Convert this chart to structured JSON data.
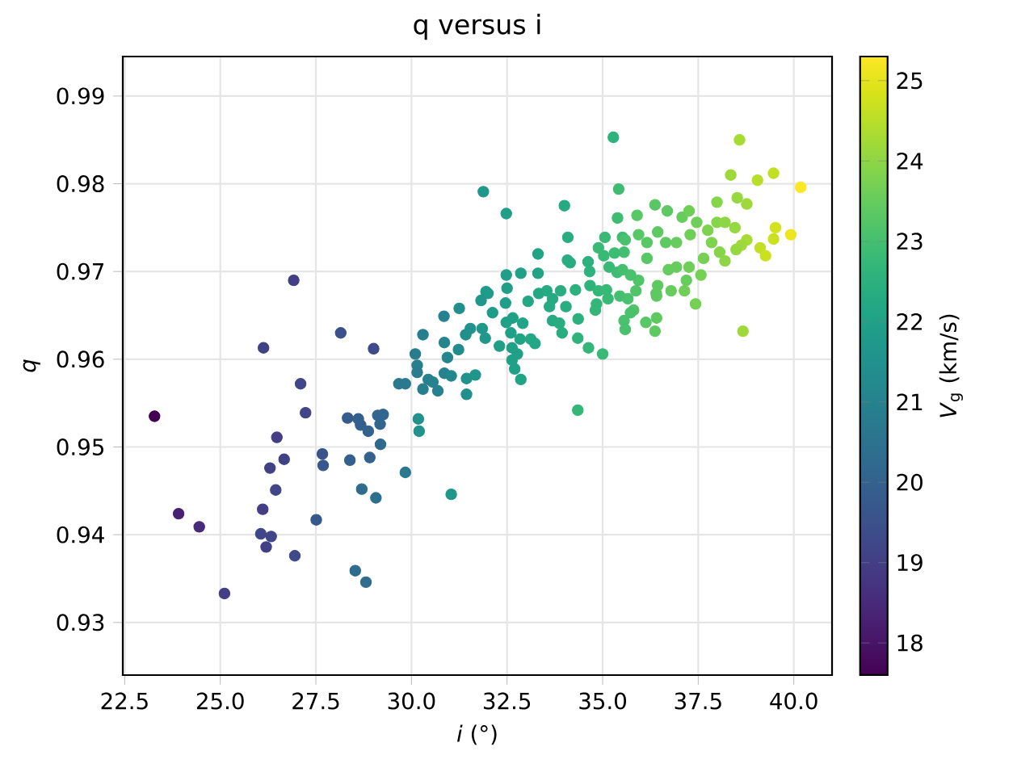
{
  "chart_data": {
    "type": "scatter",
    "title": "q versus i",
    "xlabel": "*i* (°)",
    "ylabel": "q",
    "clabel": "*V*$_{g}$ (km/s)",
    "x": [
      23.28,
      23.91,
      24.45,
      25.11,
      26.92,
      26.13,
      28.15,
      29.01,
      27.1,
      27.23,
      26.48,
      26.67,
      26.3,
      26.45,
      26.11,
      26.06,
      26.33,
      26.2,
      26.95,
      27.51,
      27.67,
      27.69,
      28.33,
      28.61,
      28.67,
      28.87,
      29.12,
      29.26,
      29.18,
      29.19,
      28.39,
      28.91,
      28.7,
      29.07,
      29.84,
      28.53,
      28.81,
      30.18,
      30.2,
      31.04,
      29.67,
      29.84,
      30.1,
      30.15,
      30.15,
      30.3,
      30.3,
      30.44,
      30.56,
      30.69,
      30.85,
      30.86,
      30.94,
      30.86,
      31.04,
      31.25,
      31.23,
      31.42,
      31.54,
      31.44,
      31.44,
      31.67,
      31.88,
      32.48,
      34.0,
      35.42,
      33.31,
      34.09,
      32.48,
      32.86,
      33.31,
      34.08,
      34.15,
      34.62,
      34.66,
      31.95,
      32.0,
      32.5,
      31.82,
      32.12,
      32.46,
      31.85,
      31.93,
      32.3,
      32.48,
      32.65,
      32.91,
      32.6,
      32.84,
      33.12,
      33.23,
      32.63,
      32.63,
      32.7,
      32.86,
      32.77,
      33.05,
      33.33,
      33.54,
      33.69,
      33.9,
      33.61,
      34.04,
      33.69,
      33.87,
      33.94,
      34.36,
      34.35,
      34.63,
      35.0,
      34.35,
      34.29,
      34.67,
      34.89,
      35.1,
      34.84,
      35.14,
      35.06,
      35.03,
      35.17,
      35.38,
      35.52,
      35.39,
      35.56,
      35.45,
      35.66,
      35.56,
      35.59,
      35.81,
      35.9,
      36.4,
      36.37,
      36.41,
      35.94,
      35.73,
      36.16,
      35.28,
      38.58,
      38.35,
      39.05,
      39.47,
      40.18,
      37.99,
      38.52,
      38.77,
      36.37,
      36.69,
      37.08,
      37.26,
      37.46,
      37.75,
      37.99,
      38.2,
      38.46,
      39.52,
      39.47,
      39.92,
      38.77,
      38.63,
      38.49,
      39.12,
      39.26,
      38.06,
      38.2,
      37.85,
      37.64,
      37.57,
      37.26,
      37.19,
      36.93,
      36.72,
      36.65,
      36.93,
      37.29,
      36.16,
      36.44,
      35.94,
      35.59,
      36.44,
      36.79,
      37.14,
      36.41,
      37.43,
      38.67,
      36.13,
      34.81,
      34.89,
      35.31,
      35.52,
      35.87,
      35.73
    ],
    "values": [
      0.9535,
      0.9424,
      0.9409,
      0.9333,
      0.969,
      0.9613,
      0.963,
      0.9612,
      0.9572,
      0.9539,
      0.9511,
      0.9486,
      0.9476,
      0.9451,
      0.9429,
      0.9401,
      0.9398,
      0.9386,
      0.9376,
      0.9417,
      0.9492,
      0.9479,
      0.9533,
      0.9532,
      0.9525,
      0.9518,
      0.9536,
      0.9537,
      0.9526,
      0.9503,
      0.9485,
      0.9488,
      0.9452,
      0.9442,
      0.9471,
      0.9359,
      0.9346,
      0.9532,
      0.9518,
      0.9446,
      0.9572,
      0.9572,
      0.9606,
      0.9593,
      0.9585,
      0.9628,
      0.9566,
      0.9577,
      0.9574,
      0.9564,
      0.9649,
      0.9619,
      0.9602,
      0.9584,
      0.9581,
      0.9658,
      0.9611,
      0.9628,
      0.9635,
      0.9578,
      0.956,
      0.9582,
      0.9791,
      0.9766,
      0.9775,
      0.9794,
      0.972,
      0.9739,
      0.9696,
      0.9698,
      0.9698,
      0.9713,
      0.971,
      0.9711,
      0.97,
      0.9677,
      0.9675,
      0.9681,
      0.9667,
      0.9653,
      0.9664,
      0.9635,
      0.9624,
      0.9615,
      0.9642,
      0.9647,
      0.9641,
      0.963,
      0.9623,
      0.9623,
      0.9618,
      0.9613,
      0.9599,
      0.9589,
      0.9577,
      0.9606,
      0.9666,
      0.9675,
      0.9678,
      0.9669,
      0.9678,
      0.966,
      0.966,
      0.9644,
      0.9641,
      0.963,
      0.9646,
      0.9624,
      0.9613,
      0.9606,
      0.9542,
      0.9679,
      0.9684,
      0.9678,
      0.9679,
      0.9663,
      0.9669,
      0.9739,
      0.9718,
      0.9705,
      0.9699,
      0.9739,
      0.9761,
      0.9722,
      0.9672,
      0.9669,
      0.9644,
      0.9634,
      0.9656,
      0.9764,
      0.9675,
      0.9632,
      0.9647,
      0.969,
      0.9696,
      0.9715,
      0.9853,
      0.985,
      0.981,
      0.9804,
      0.9812,
      0.9796,
      0.9779,
      0.9784,
      0.9777,
      0.9776,
      0.9769,
      0.9762,
      0.9769,
      0.9756,
      0.9747,
      0.9756,
      0.9756,
      0.975,
      0.975,
      0.9737,
      0.9742,
      0.9736,
      0.973,
      0.9725,
      0.9727,
      0.9718,
      0.9722,
      0.9712,
      0.9733,
      0.9715,
      0.9696,
      0.9705,
      0.969,
      0.9705,
      0.9702,
      0.9733,
      0.9733,
      0.9742,
      0.9733,
      0.9745,
      0.9742,
      0.9736,
      0.9684,
      0.9678,
      0.9678,
      0.9672,
      0.9663,
      0.9632,
      0.9642,
      0.9656,
      0.9727,
      0.9721,
      0.9702,
      0.9678,
      0.9653
    ],
    "cvalues": [
      17.6,
      18.3,
      18.5,
      19.0,
      19.0,
      19.1,
      19.5,
      19.3,
      19.2,
      19.2,
      19.0,
      19.1,
      19.1,
      19.2,
      19.0,
      19.2,
      19.2,
      19.1,
      19.3,
      19.7,
      19.6,
      19.7,
      19.8,
      19.9,
      19.9,
      20.0,
      20.1,
      20.1,
      20.1,
      20.2,
      19.9,
      20.0,
      20.3,
      20.4,
      20.7,
      20.3,
      20.3,
      21.5,
      21.5,
      21.7,
      20.7,
      20.7,
      20.8,
      20.9,
      20.8,
      20.9,
      20.9,
      21.0,
      21.0,
      21.0,
      21.0,
      21.1,
      21.1,
      21.0,
      21.2,
      21.4,
      21.3,
      21.4,
      21.5,
      21.5,
      21.4,
      21.6,
      21.7,
      21.9,
      22.3,
      22.9,
      22.1,
      22.4,
      21.9,
      22.0,
      22.1,
      22.4,
      22.4,
      22.5,
      22.6,
      21.8,
      21.8,
      21.9,
      21.7,
      21.8,
      21.9,
      21.7,
      21.7,
      21.9,
      22.0,
      22.0,
      22.1,
      22.0,
      22.1,
      22.2,
      22.2,
      22.0,
      22.0,
      22.0,
      22.1,
      22.0,
      22.2,
      22.2,
      22.3,
      22.3,
      22.4,
      22.3,
      22.4,
      22.3,
      22.4,
      22.4,
      22.5,
      22.6,
      22.7,
      22.8,
      22.7,
      22.5,
      22.6,
      22.7,
      22.8,
      22.7,
      22.8,
      22.8,
      22.8,
      22.8,
      22.9,
      22.9,
      22.9,
      23.0,
      23.0,
      23.1,
      23.1,
      23.1,
      23.2,
      23.3,
      23.4,
      23.4,
      23.4,
      23.2,
      23.1,
      23.3,
      22.6,
      24.3,
      24.2,
      24.5,
      24.6,
      25.3,
      23.9,
      24.1,
      24.2,
      23.3,
      23.4,
      23.5,
      23.6,
      23.6,
      23.8,
      23.9,
      24.0,
      24.1,
      24.8,
      24.7,
      25.1,
      24.3,
      24.2,
      24.1,
      24.6,
      24.7,
      23.9,
      24.0,
      23.8,
      23.7,
      23.7,
      23.6,
      23.5,
      23.5,
      23.5,
      23.4,
      23.5,
      23.6,
      23.3,
      23.4,
      23.3,
      23.1,
      23.4,
      23.5,
      23.6,
      23.4,
      23.7,
      24.2,
      23.3,
      22.7,
      22.8,
      22.9,
      23.0,
      23.2,
      23.1
    ],
    "xlim": [
      22.45,
      41.0
    ],
    "ylim": [
      0.924,
      0.9945
    ],
    "xticks": [
      22.5,
      {
        "value": 25,
        "label": "25.0"
      },
      27.5,
      {
        "value": 30,
        "label": "30.0"
      },
      32.5,
      {
        "value": 35,
        "label": "35.0"
      },
      37.5,
      {
        "value": 40,
        "label": "40.0"
      }
    ],
    "yticks": [
      0.93,
      0.94,
      0.95,
      0.96,
      0.97,
      0.98,
      0.99
    ],
    "clim": [
      17.6,
      25.3
    ],
    "cticks": [
      18,
      19,
      20,
      21,
      22,
      23,
      24,
      25
    ],
    "grid": true,
    "marker": "circle"
  }
}
